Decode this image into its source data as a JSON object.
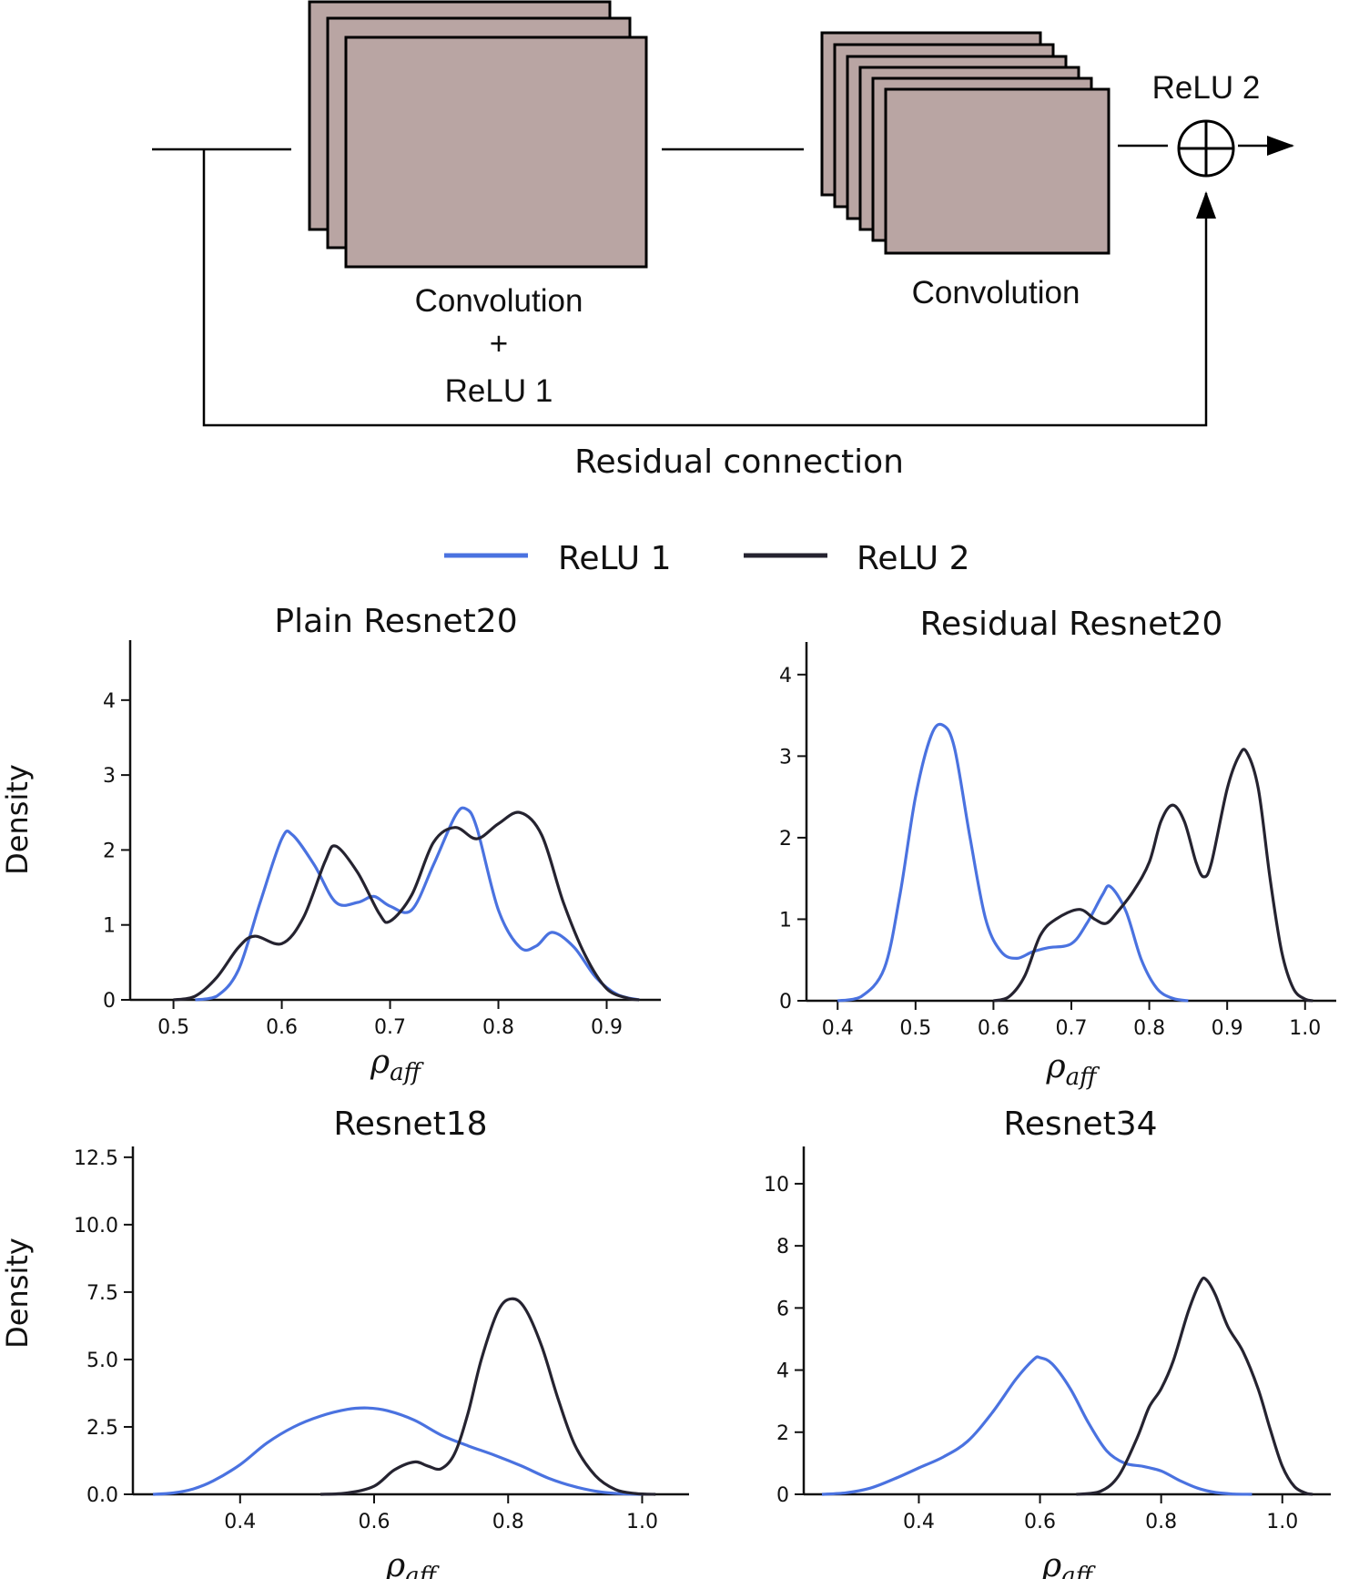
{
  "diagram": {
    "block1_label_line1": "Convolution",
    "block1_label_line2": "+",
    "block1_label_line3": "ReLU 1",
    "block2_label": "Convolution",
    "relu2_label": "ReLU 2",
    "residual_label": "Residual connection",
    "block_fill": "#b9a5a3",
    "line_color": "#000000"
  },
  "legend": {
    "items": [
      {
        "label": "ReLU 1",
        "color": "#4a72e0"
      },
      {
        "label": "ReLU 2",
        "color": "#252330"
      }
    ]
  },
  "chart_data": [
    {
      "type": "line",
      "title": "Plain Resnet20",
      "xlabel": "ρ",
      "xlabel_sub": "aff",
      "ylabel": "Density",
      "xlim": [
        0.46,
        0.95
      ],
      "ylim": [
        0,
        4.8
      ],
      "xticks": [
        0.5,
        0.6,
        0.7,
        0.8,
        0.9
      ],
      "yticks": [
        0,
        1,
        2,
        3,
        4
      ],
      "series": [
        {
          "name": "ReLU 1",
          "color": "#4a72e0",
          "points": [
            [
              0.52,
              0
            ],
            [
              0.54,
              0.05
            ],
            [
              0.56,
              0.4
            ],
            [
              0.58,
              1.3
            ],
            [
              0.6,
              2.15
            ],
            [
              0.61,
              2.2
            ],
            [
              0.63,
              1.8
            ],
            [
              0.65,
              1.3
            ],
            [
              0.67,
              1.3
            ],
            [
              0.685,
              1.38
            ],
            [
              0.7,
              1.25
            ],
            [
              0.72,
              1.2
            ],
            [
              0.74,
              1.8
            ],
            [
              0.76,
              2.45
            ],
            [
              0.77,
              2.55
            ],
            [
              0.78,
              2.3
            ],
            [
              0.8,
              1.2
            ],
            [
              0.82,
              0.7
            ],
            [
              0.835,
              0.72
            ],
            [
              0.85,
              0.9
            ],
            [
              0.87,
              0.7
            ],
            [
              0.89,
              0.3
            ],
            [
              0.91,
              0.07
            ],
            [
              0.93,
              0
            ]
          ]
        },
        {
          "name": "ReLU 2",
          "color": "#252330",
          "points": [
            [
              0.5,
              0
            ],
            [
              0.52,
              0.05
            ],
            [
              0.54,
              0.3
            ],
            [
              0.56,
              0.7
            ],
            [
              0.575,
              0.85
            ],
            [
              0.6,
              0.75
            ],
            [
              0.62,
              1.1
            ],
            [
              0.64,
              1.85
            ],
            [
              0.65,
              2.05
            ],
            [
              0.67,
              1.7
            ],
            [
              0.69,
              1.15
            ],
            [
              0.7,
              1.05
            ],
            [
              0.72,
              1.4
            ],
            [
              0.74,
              2.1
            ],
            [
              0.76,
              2.3
            ],
            [
              0.78,
              2.15
            ],
            [
              0.8,
              2.35
            ],
            [
              0.82,
              2.5
            ],
            [
              0.84,
              2.2
            ],
            [
              0.86,
              1.3
            ],
            [
              0.88,
              0.6
            ],
            [
              0.9,
              0.15
            ],
            [
              0.92,
              0.02
            ],
            [
              0.93,
              0
            ]
          ]
        }
      ]
    },
    {
      "type": "line",
      "title": "Residual Resnet20",
      "xlabel": "ρ",
      "xlabel_sub": "aff",
      "ylabel": "",
      "xlim": [
        0.36,
        1.04
      ],
      "ylim": [
        0,
        4.4
      ],
      "xticks": [
        0.4,
        0.5,
        0.6,
        0.7,
        0.8,
        0.9,
        1.0
      ],
      "yticks": [
        0,
        1,
        2,
        3,
        4
      ],
      "series": [
        {
          "name": "ReLU 1",
          "color": "#4a72e0",
          "points": [
            [
              0.4,
              0
            ],
            [
              0.43,
              0.05
            ],
            [
              0.46,
              0.4
            ],
            [
              0.48,
              1.3
            ],
            [
              0.5,
              2.5
            ],
            [
              0.52,
              3.25
            ],
            [
              0.535,
              3.38
            ],
            [
              0.55,
              3.1
            ],
            [
              0.57,
              2.0
            ],
            [
              0.59,
              1.0
            ],
            [
              0.61,
              0.6
            ],
            [
              0.63,
              0.52
            ],
            [
              0.65,
              0.6
            ],
            [
              0.67,
              0.65
            ],
            [
              0.7,
              0.7
            ],
            [
              0.72,
              0.95
            ],
            [
              0.74,
              1.3
            ],
            [
              0.75,
              1.4
            ],
            [
              0.77,
              1.1
            ],
            [
              0.79,
              0.5
            ],
            [
              0.81,
              0.15
            ],
            [
              0.83,
              0.03
            ],
            [
              0.85,
              0
            ]
          ]
        },
        {
          "name": "ReLU 2",
          "color": "#252330",
          "points": [
            [
              0.6,
              0
            ],
            [
              0.62,
              0.05
            ],
            [
              0.64,
              0.3
            ],
            [
              0.66,
              0.8
            ],
            [
              0.68,
              1.0
            ],
            [
              0.71,
              1.12
            ],
            [
              0.73,
              1.0
            ],
            [
              0.745,
              0.95
            ],
            [
              0.76,
              1.1
            ],
            [
              0.78,
              1.35
            ],
            [
              0.8,
              1.7
            ],
            [
              0.815,
              2.2
            ],
            [
              0.83,
              2.4
            ],
            [
              0.845,
              2.2
            ],
            [
              0.86,
              1.7
            ],
            [
              0.87,
              1.52
            ],
            [
              0.88,
              1.7
            ],
            [
              0.9,
              2.6
            ],
            [
              0.915,
              3.0
            ],
            [
              0.925,
              3.05
            ],
            [
              0.94,
              2.6
            ],
            [
              0.955,
              1.5
            ],
            [
              0.97,
              0.6
            ],
            [
              0.985,
              0.15
            ],
            [
              1.0,
              0.02
            ],
            [
              1.01,
              0
            ]
          ]
        }
      ]
    },
    {
      "type": "line",
      "title": "Resnet18",
      "xlabel": "ρ",
      "xlabel_sub": "aff",
      "ylabel": "Density",
      "xlim": [
        0.24,
        1.07
      ],
      "ylim": [
        0,
        12.9
      ],
      "xticks": [
        0.4,
        0.6,
        0.8,
        1.0
      ],
      "yticks": [
        0.0,
        2.5,
        5.0,
        7.5,
        10.0,
        12.5
      ],
      "series": [
        {
          "name": "ReLU 1",
          "color": "#4a72e0",
          "points": [
            [
              0.27,
              0
            ],
            [
              0.3,
              0.05
            ],
            [
              0.33,
              0.2
            ],
            [
              0.36,
              0.5
            ],
            [
              0.4,
              1.1
            ],
            [
              0.44,
              1.9
            ],
            [
              0.48,
              2.5
            ],
            [
              0.52,
              2.9
            ],
            [
              0.56,
              3.15
            ],
            [
              0.59,
              3.2
            ],
            [
              0.62,
              3.1
            ],
            [
              0.66,
              2.75
            ],
            [
              0.7,
              2.2
            ],
            [
              0.74,
              1.8
            ],
            [
              0.78,
              1.45
            ],
            [
              0.82,
              1.05
            ],
            [
              0.86,
              0.6
            ],
            [
              0.9,
              0.28
            ],
            [
              0.94,
              0.08
            ],
            [
              0.98,
              0.01
            ],
            [
              1.0,
              0
            ]
          ]
        },
        {
          "name": "ReLU 2",
          "color": "#252330",
          "points": [
            [
              0.52,
              0
            ],
            [
              0.56,
              0.05
            ],
            [
              0.6,
              0.3
            ],
            [
              0.63,
              0.9
            ],
            [
              0.66,
              1.2
            ],
            [
              0.68,
              1.05
            ],
            [
              0.7,
              0.95
            ],
            [
              0.72,
              1.5
            ],
            [
              0.74,
              3.0
            ],
            [
              0.76,
              5.0
            ],
            [
              0.785,
              6.8
            ],
            [
              0.805,
              7.25
            ],
            [
              0.825,
              6.9
            ],
            [
              0.85,
              5.5
            ],
            [
              0.875,
              3.5
            ],
            [
              0.9,
              1.8
            ],
            [
              0.93,
              0.7
            ],
            [
              0.96,
              0.18
            ],
            [
              0.99,
              0.03
            ],
            [
              1.02,
              0
            ]
          ]
        }
      ]
    },
    {
      "type": "line",
      "title": "Resnet34",
      "xlabel": "ρ",
      "xlabel_sub": "aff",
      "ylabel": "",
      "xlim": [
        0.21,
        1.08
      ],
      "ylim": [
        0,
        11.2
      ],
      "xticks": [
        0.4,
        0.6,
        0.8,
        1.0
      ],
      "yticks": [
        0,
        2,
        4,
        6,
        8,
        10
      ],
      "series": [
        {
          "name": "ReLU 1",
          "color": "#4a72e0",
          "points": [
            [
              0.24,
              0
            ],
            [
              0.28,
              0.05
            ],
            [
              0.32,
              0.2
            ],
            [
              0.36,
              0.5
            ],
            [
              0.4,
              0.85
            ],
            [
              0.44,
              1.2
            ],
            [
              0.48,
              1.7
            ],
            [
              0.52,
              2.6
            ],
            [
              0.56,
              3.7
            ],
            [
              0.59,
              4.35
            ],
            [
              0.6,
              4.4
            ],
            [
              0.62,
              4.2
            ],
            [
              0.65,
              3.4
            ],
            [
              0.68,
              2.3
            ],
            [
              0.71,
              1.4
            ],
            [
              0.74,
              1.0
            ],
            [
              0.77,
              0.9
            ],
            [
              0.8,
              0.75
            ],
            [
              0.83,
              0.45
            ],
            [
              0.86,
              0.2
            ],
            [
              0.89,
              0.06
            ],
            [
              0.92,
              0.01
            ],
            [
              0.95,
              0
            ]
          ]
        },
        {
          "name": "ReLU 2",
          "color": "#252330",
          "points": [
            [
              0.66,
              0
            ],
            [
              0.7,
              0.1
            ],
            [
              0.73,
              0.6
            ],
            [
              0.76,
              1.8
            ],
            [
              0.78,
              2.8
            ],
            [
              0.8,
              3.4
            ],
            [
              0.82,
              4.3
            ],
            [
              0.845,
              5.9
            ],
            [
              0.865,
              6.85
            ],
            [
              0.875,
              6.9
            ],
            [
              0.89,
              6.4
            ],
            [
              0.91,
              5.4
            ],
            [
              0.935,
              4.6
            ],
            [
              0.96,
              3.4
            ],
            [
              0.98,
              2.1
            ],
            [
              1.0,
              0.9
            ],
            [
              1.02,
              0.25
            ],
            [
              1.04,
              0.03
            ],
            [
              1.05,
              0
            ]
          ]
        }
      ]
    }
  ]
}
